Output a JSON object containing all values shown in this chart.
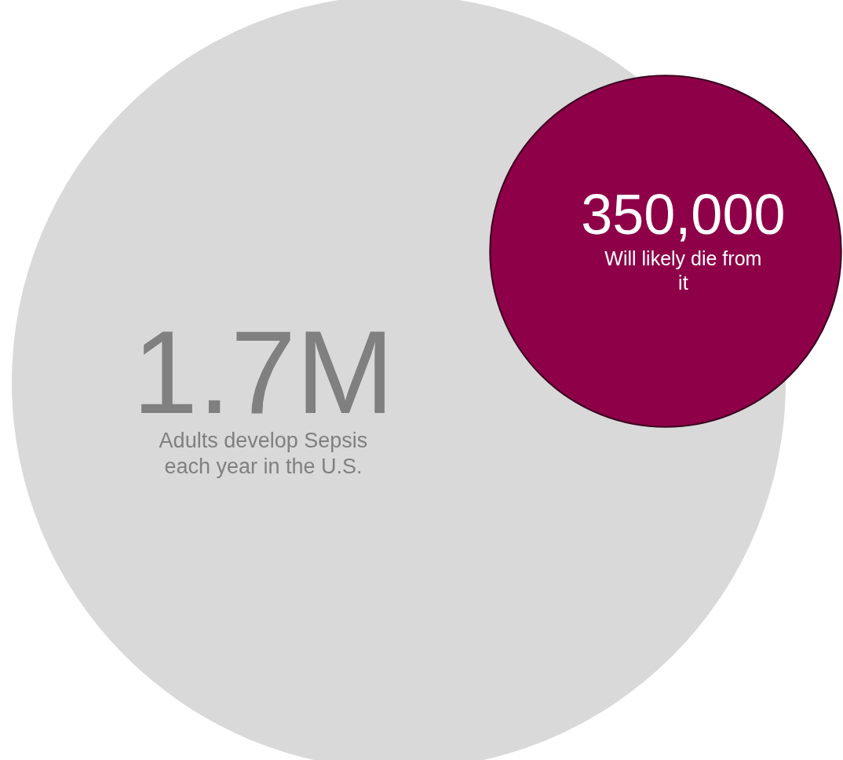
{
  "chart_data": {
    "type": "other",
    "categories": [
      "Adults develop Sepsis each year in the U.S.",
      "Will likely die from it"
    ],
    "values": [
      1700000,
      350000
    ],
    "value_labels": [
      "1.7M",
      "350,000"
    ],
    "colors": [
      "#d9d9d9",
      "#8e0047"
    ]
  }
}
